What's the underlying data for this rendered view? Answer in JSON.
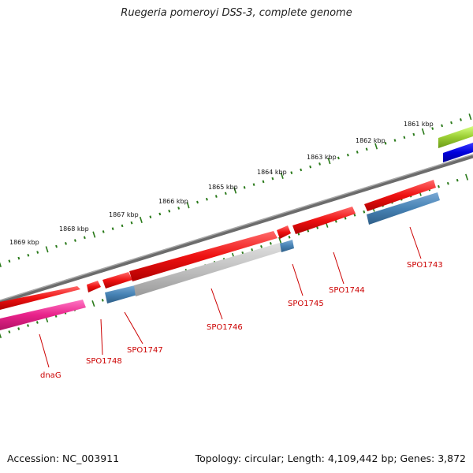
{
  "title": "Ruegeria pomeroyi DSS-3, complete genome",
  "footer": {
    "accession": "Accession: NC_003911",
    "summary": "Topology: circular; Length: 4,109,442 bp; Genes: 3,872"
  },
  "kbp_labels": [
    "1861 kbp",
    "1862 kbp",
    "1863 kbp",
    "1864 kbp",
    "1865 kbp",
    "1866 kbp",
    "1867 kbp",
    "1868 kbp",
    "1869 kbp"
  ],
  "gene_labels": [
    "SPO1743",
    "SPO1744",
    "SPO1745",
    "SPO1746",
    "SPO1747",
    "SPO1748",
    "dnaG"
  ],
  "colors": {
    "background": "#ffffff",
    "backbone": "#808080",
    "forward_cds": "#ee1111",
    "reverse_cds": "#4682b4",
    "gray_feature": "#bbbbbb",
    "magenta_feature": "#e8228a",
    "lime_feature": "#9acd32",
    "blue_feature": "#0000dd",
    "ticks": "#2a7a1a",
    "gene_label": "#cc0000"
  }
}
